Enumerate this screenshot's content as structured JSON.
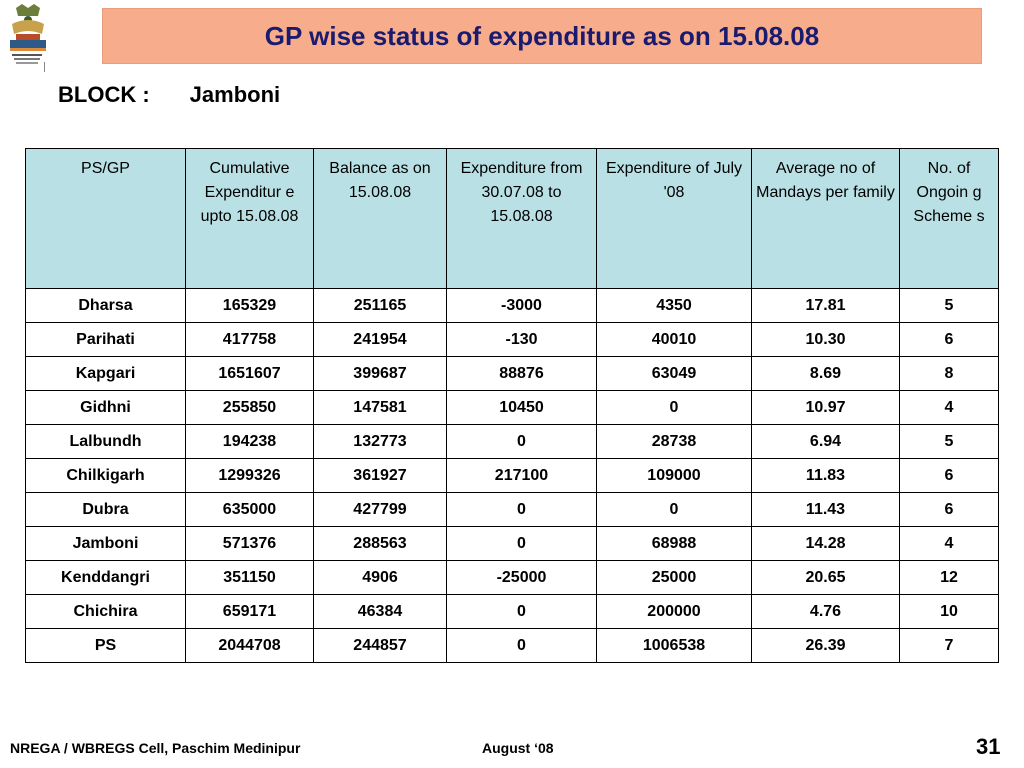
{
  "title": "GP wise status of expenditure as on 15.08.08",
  "block": {
    "label": "BLOCK :",
    "value": "Jamboni"
  },
  "table": {
    "headers": [
      "PS/GP",
      "Cumulative Expenditur e upto 15.08.08",
      "Balance as on 15.08.08",
      "Expenditure from 30.07.08 to 15.08.08",
      "Expenditure of  July '08",
      "Average no of Mandays per family",
      "No. of Ongoin g Scheme s"
    ],
    "rows": [
      [
        "Dharsa",
        "165329",
        "251165",
        "-3000",
        "4350",
        "17.81",
        "5"
      ],
      [
        "Parihati",
        "417758",
        "241954",
        "-130",
        "40010",
        "10.30",
        "6"
      ],
      [
        "Kapgari",
        "1651607",
        "399687",
        "88876",
        "63049",
        "8.69",
        "8"
      ],
      [
        "Gidhni",
        "255850",
        "147581",
        "10450",
        "0",
        "10.97",
        "4"
      ],
      [
        "Lalbundh",
        "194238",
        "132773",
        "0",
        "28738",
        "6.94",
        "5"
      ],
      [
        "Chilkigarh",
        "1299326",
        "361927",
        "217100",
        "109000",
        "11.83",
        "6"
      ],
      [
        "Dubra",
        "635000",
        "427799",
        "0",
        "0",
        "11.43",
        "6"
      ],
      [
        "Jamboni",
        "571376",
        "288563",
        "0",
        "68988",
        "14.28",
        "4"
      ],
      [
        "Kenddangri",
        "351150",
        "4906",
        "-25000",
        "25000",
        "20.65",
        "12"
      ],
      [
        "Chichira",
        "659171",
        "46384",
        "0",
        "200000",
        "4.76",
        "10"
      ],
      [
        "PS",
        "2044708",
        "244857",
        "0",
        "1006538",
        "26.39",
        "7"
      ]
    ]
  },
  "footer": {
    "left": "NREGA / WBREGS Cell, Paschim Medinipur",
    "middle": "August ‘0 8",
    "page": "31"
  },
  "colors": {
    "title_bg": "#f7ad8c",
    "header_bg": "#b9e0e4",
    "title_text": "#1a1a6e"
  },
  "icons": {
    "logo": "nrega-emblem-icon"
  }
}
